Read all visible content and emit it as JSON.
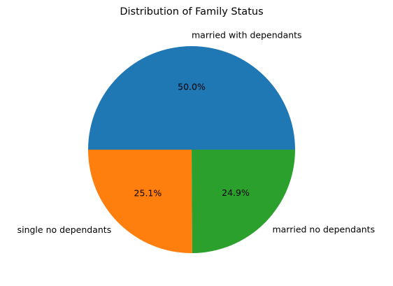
{
  "chart_data": {
    "type": "pie",
    "title": "Distribution of Family Status",
    "slices": [
      {
        "label": "married with dependants",
        "value": 50.0,
        "pct_label": "50.0%",
        "color": "#1f77b4"
      },
      {
        "label": "single no dependants",
        "value": 25.1,
        "pct_label": "25.1%",
        "color": "#ff7f0e"
      },
      {
        "label": "married no dependants",
        "value": 24.9,
        "pct_label": "24.9%",
        "color": "#2ca02c"
      }
    ],
    "legend": "none"
  }
}
